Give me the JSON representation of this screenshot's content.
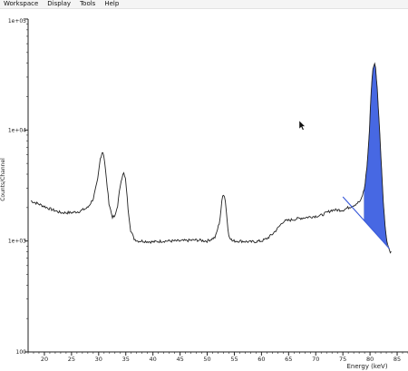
{
  "menubar": {
    "items": [
      "Workspace",
      "Display",
      "Tools",
      "Help"
    ]
  },
  "chart_data": {
    "type": "line",
    "xlabel": "Energy (keV)",
    "ylabel": "Counts/Channel",
    "xlim": [
      17,
      87
    ],
    "ylim": [
      100,
      100000
    ],
    "y_scale": "log",
    "x_ticks": [
      20,
      25,
      30,
      35,
      40,
      45,
      50,
      55,
      60,
      65,
      70,
      75,
      80,
      85
    ],
    "y_ticks": [
      {
        "value": 100,
        "label": "100"
      },
      {
        "value": 1000,
        "label": "1e+03"
      },
      {
        "value": 10000,
        "label": "1e+04"
      },
      {
        "value": 100000,
        "label": "1e+05"
      }
    ],
    "grid": false,
    "spectrum": {
      "x": [
        17.5,
        19,
        21,
        23,
        25,
        26.5,
        28,
        29,
        29.8,
        30.3,
        30.7,
        31,
        31.4,
        31.9,
        32.5,
        33,
        33.5,
        34.1,
        34.6,
        35,
        35.4,
        35.9,
        36.5,
        37.2,
        38,
        40,
        42,
        45,
        48,
        50,
        51.5,
        52.3,
        52.8,
        53.1,
        53.4,
        53.9,
        54.6,
        56,
        58,
        60,
        61,
        62,
        63,
        64,
        65.5,
        67,
        69,
        71,
        73,
        75,
        77,
        78.3,
        79,
        79.5,
        79.9,
        80.2,
        80.5,
        80.8,
        81,
        81.3,
        81.6,
        82,
        82.4,
        82.8,
        83.2,
        83.6,
        84
      ],
      "y": [
        2300,
        2150,
        1950,
        1800,
        1800,
        1850,
        2000,
        2400,
        3500,
        5500,
        6500,
        5800,
        3700,
        2200,
        1650,
        1650,
        2100,
        3500,
        4100,
        3500,
        2000,
        1250,
        1050,
        1000,
        1000,
        980,
        1000,
        1000,
        1020,
        1000,
        1080,
        1500,
        2500,
        2700,
        2200,
        1150,
        1000,
        1000,
        980,
        1000,
        1050,
        1150,
        1300,
        1500,
        1550,
        1600,
        1650,
        1700,
        1900,
        1900,
        2100,
        2300,
        3000,
        5000,
        10000,
        22000,
        35000,
        40000,
        37000,
        25000,
        14000,
        6000,
        2500,
        1300,
        950,
        820,
        780
      ]
    },
    "baseline": {
      "x": [
        75,
        83.6
      ],
      "y": [
        2500,
        850
      ]
    },
    "highlighted_peak": {
      "x_range": [
        78.8,
        83.2
      ],
      "color": "#3358e0"
    },
    "line_color": "#222222",
    "baseline_color": "#3a5bd9"
  }
}
